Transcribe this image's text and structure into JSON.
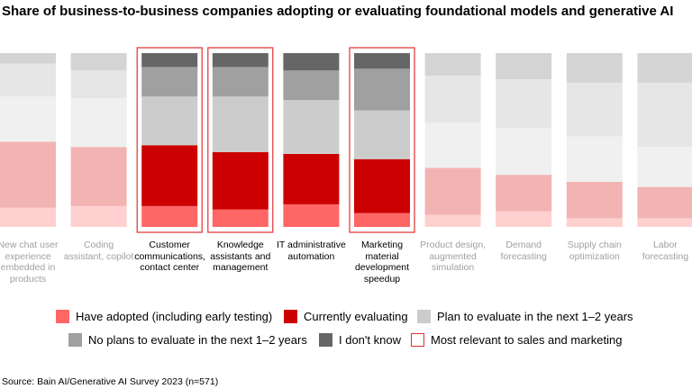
{
  "chart_data": {
    "type": "bar",
    "stacked": true,
    "title": "Share of business-to-business companies adopting or evaluating foundational models and generative AI",
    "ylim": [
      0,
      100
    ],
    "categories": [
      "New chat user experience embedded in products",
      "Coding assistant, copilot",
      "Customer communications, contact center",
      "Knowledge assistants and management",
      "IT administrative automation",
      "Marketing material development speedup",
      "Product design, augmented simulation",
      "Demand forecasting",
      "Supply chain optimization",
      "Labor forecasting"
    ],
    "highlighted": [
      false,
      false,
      true,
      true,
      true,
      true,
      false,
      false,
      false,
      false
    ],
    "series": [
      {
        "name": "Have adopted (including early testing)",
        "color": "#ff6666",
        "faded_color": "#ffd0d0",
        "values": [
          11,
          12,
          12,
          10,
          13,
          8,
          7,
          9,
          5,
          5
        ]
      },
      {
        "name": "Currently evaluating",
        "color": "#cc0000",
        "faded_color": "#f2b3b3",
        "values": [
          38,
          34,
          35,
          33,
          29,
          31,
          27,
          21,
          21,
          18
        ]
      },
      {
        "name": "Plan to evaluate in the next 1–2 years",
        "color": "#cccccc",
        "faded_color": "#f0f0f0",
        "values": [
          26,
          28,
          28,
          32,
          31,
          28,
          26,
          27,
          26,
          23
        ]
      },
      {
        "name": "No plans to evaluate in the next 1–2 years",
        "color": "#a0a0a0",
        "faded_color": "#e6e6e6",
        "values": [
          19,
          16,
          17,
          17,
          17,
          24,
          27,
          28,
          31,
          37
        ]
      },
      {
        "name": "I don't know",
        "color": "#666666",
        "faded_color": "#d4d4d4",
        "values": [
          6,
          10,
          8,
          8,
          10,
          9,
          13,
          15,
          17,
          17
        ]
      }
    ],
    "outline_legend": "Most relevant to sales and marketing",
    "outlined": [
      false,
      false,
      true,
      true,
      false,
      true,
      false,
      false,
      false,
      false
    ],
    "outline_color": "#e03030"
  },
  "source": "Source: Bain AI/Generative AI Survey 2023 (n=571)"
}
